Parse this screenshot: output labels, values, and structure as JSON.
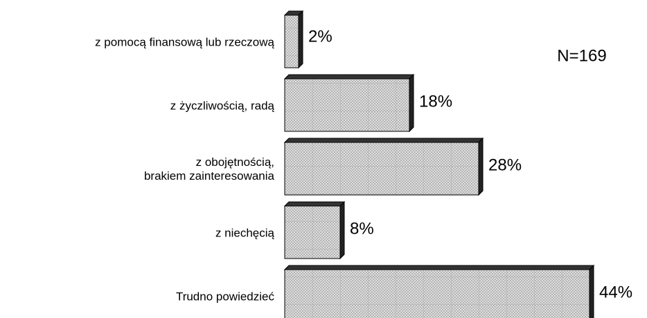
{
  "chart_data": {
    "type": "bar",
    "orientation": "horizontal",
    "categories": [
      "z pomocą finansową lub rzeczową",
      "z życzliwością, radą",
      "z obojętnością,\nbrakiem zainteresowania",
      "z niechęcią",
      "Trudno powiedzieć"
    ],
    "values": [
      2,
      18,
      28,
      8,
      44
    ],
    "value_labels": [
      "2%",
      "18%",
      "28%",
      "8%",
      "44%"
    ],
    "color": "#d8d8d8",
    "annotation": "N=169"
  }
}
